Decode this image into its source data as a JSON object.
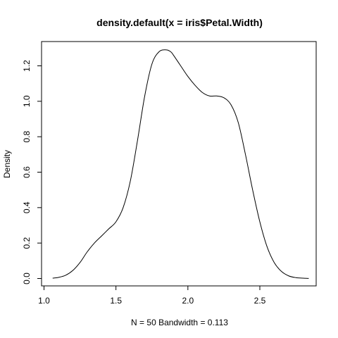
{
  "chart_data": {
    "type": "line",
    "title": "density.default(x = iris$Petal.Width)",
    "xlabel": "N = 50   Bandwidth = 0.113",
    "ylabel": "Density",
    "xlim": [
      1.0,
      2.85
    ],
    "ylim": [
      0.0,
      1.3
    ],
    "x_ticks": [
      1.0,
      1.5,
      2.0,
      2.5
    ],
    "x_tick_labels": [
      "1.0",
      "1.5",
      "2.0",
      "2.5"
    ],
    "y_ticks": [
      0.0,
      0.2,
      0.4,
      0.6,
      0.8,
      1.0,
      1.2
    ],
    "y_tick_labels": [
      "0.0",
      "0.2",
      "0.4",
      "0.6",
      "0.8",
      "1.0",
      "1.2"
    ],
    "grid": false,
    "series": [
      {
        "color": "#000000",
        "x": [
          1.06,
          1.1,
          1.15,
          1.2,
          1.25,
          1.3,
          1.35,
          1.4,
          1.45,
          1.5,
          1.55,
          1.6,
          1.65,
          1.7,
          1.75,
          1.8,
          1.85,
          1.88,
          1.9,
          1.95,
          2.0,
          2.05,
          2.1,
          2.15,
          2.2,
          2.25,
          2.3,
          2.35,
          2.4,
          2.45,
          2.5,
          2.55,
          2.6,
          2.65,
          2.7,
          2.75,
          2.8,
          2.84
        ],
        "y": [
          0.002,
          0.006,
          0.018,
          0.045,
          0.09,
          0.15,
          0.2,
          0.24,
          0.28,
          0.32,
          0.4,
          0.55,
          0.78,
          1.03,
          1.21,
          1.28,
          1.29,
          1.28,
          1.26,
          1.2,
          1.14,
          1.09,
          1.05,
          1.03,
          1.03,
          1.02,
          0.98,
          0.88,
          0.7,
          0.5,
          0.32,
          0.18,
          0.09,
          0.04,
          0.015,
          0.005,
          0.002,
          0.0005
        ]
      }
    ]
  }
}
